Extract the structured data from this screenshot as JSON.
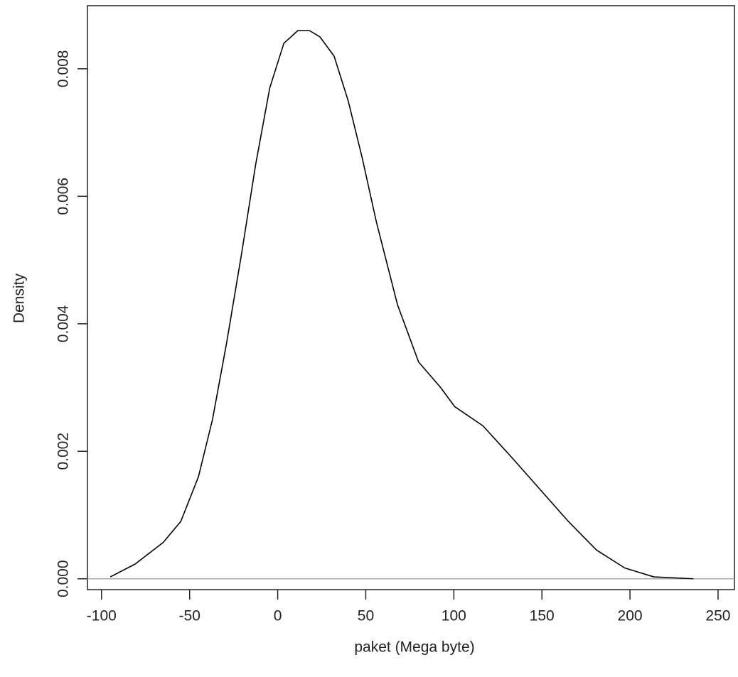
{
  "chart_data": {
    "type": "line",
    "xlabel": "paket (Mega byte)",
    "ylabel": "Density",
    "x": [
      -95,
      -81,
      -65,
      -55,
      -45,
      -37,
      -29,
      -20.5,
      -12.5,
      -4.5,
      3.5,
      11.5,
      18,
      24,
      32,
      40,
      48,
      56,
      68,
      80,
      92.5,
      100.5,
      116.5,
      133,
      149,
      165,
      181,
      197,
      213.5,
      236
    ],
    "series": [
      {
        "color": "#000000",
        "values": [
          3e-05,
          0.00023,
          0.00057,
          0.0009,
          0.0016,
          0.0025,
          0.0037,
          0.0051,
          0.0065,
          0.0077,
          0.0084,
          0.0086,
          0.0086,
          0.0085,
          0.0082,
          0.0075,
          0.0066,
          0.0056,
          0.0043,
          0.0034,
          0.003,
          0.0027,
          0.0024,
          0.0019,
          0.0014,
          0.0009,
          0.00045,
          0.00017,
          3e-05,
          0
        ]
      }
    ],
    "xlim": [
      -108,
      259.3
    ],
    "ylim": [
      -0.00017,
      0.00899
    ],
    "xticks": [
      -100,
      -50,
      0,
      50,
      100,
      150,
      200,
      250
    ],
    "yticks": [
      {
        "value": 0,
        "label": "0.000"
      },
      0.002,
      0.004,
      0.006,
      0.008
    ],
    "baseline": 0,
    "baseline_color": "#aaaaaa"
  }
}
